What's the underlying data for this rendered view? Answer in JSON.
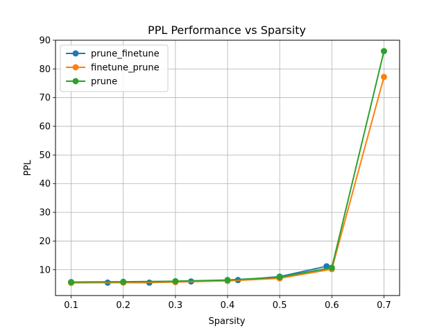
{
  "chart_data": {
    "type": "line",
    "title": "PPL Performance vs Sparsity",
    "xlabel": "Sparsity",
    "ylabel": "PPL",
    "xlim": [
      0.07,
      0.73
    ],
    "ylim": [
      1,
      90
    ],
    "xticks": [
      "0.1",
      "0.2",
      "0.3",
      "0.4",
      "0.5",
      "0.6",
      "0.7"
    ],
    "yticks": [
      "10",
      "20",
      "30",
      "40",
      "50",
      "60",
      "70",
      "80",
      "90"
    ],
    "grid": true,
    "legend_position": "top-left",
    "series": [
      {
        "name": "prune_finetune",
        "color": "#1f77b4",
        "x": [
          0.1,
          0.17,
          0.25,
          0.33,
          0.42,
          0.5,
          0.59
        ],
        "y": [
          5.6,
          5.5,
          5.5,
          5.9,
          6.4,
          7.6,
          11.2
        ]
      },
      {
        "name": "finetune_prune",
        "color": "#ff7f0e",
        "x": [
          0.1,
          0.2,
          0.3,
          0.4,
          0.5,
          0.6,
          0.7
        ],
        "y": [
          5.4,
          5.5,
          5.7,
          6.1,
          7.0,
          10.2,
          77.2
        ]
      },
      {
        "name": "prune",
        "color": "#2ca02c",
        "x": [
          0.1,
          0.2,
          0.3,
          0.4,
          0.5,
          0.6,
          0.7
        ],
        "y": [
          5.7,
          5.8,
          6.0,
          6.4,
          7.4,
          10.7,
          86.2
        ]
      }
    ]
  }
}
